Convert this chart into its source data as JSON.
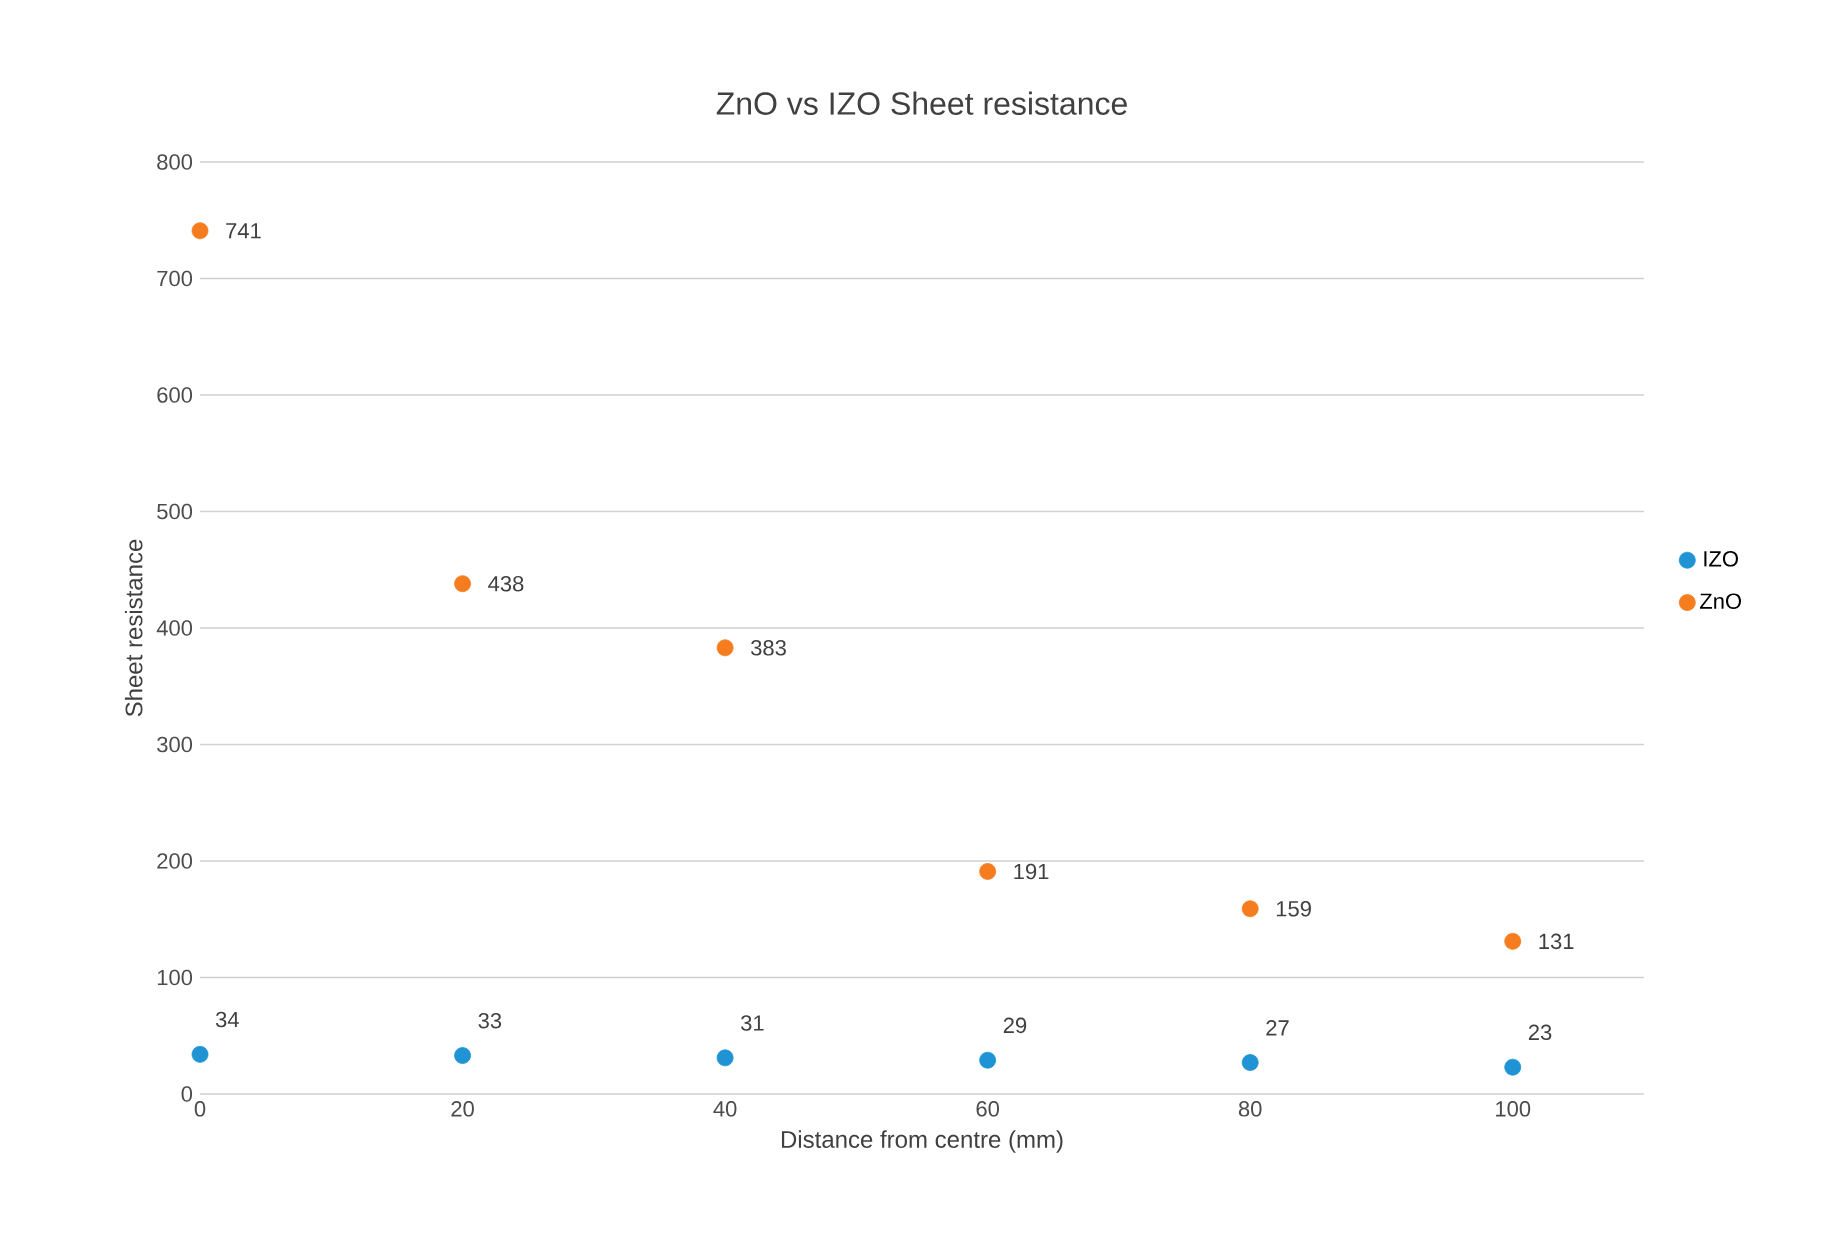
{
  "chart_data": {
    "type": "scatter",
    "title": "ZnO vs IZO Sheet resistance",
    "xlabel": "Distance from centre (mm)",
    "ylabel": "Sheet resistance",
    "x": [
      0,
      20,
      40,
      60,
      80,
      100
    ],
    "series": [
      {
        "name": "IZO",
        "color": "#1f93d4",
        "values": [
          34,
          33,
          31,
          29,
          27,
          23
        ]
      },
      {
        "name": "ZnO",
        "color": "#f57d20",
        "values": [
          741,
          438,
          383,
          191,
          159,
          131
        ]
      }
    ],
    "xlim": [
      0,
      110
    ],
    "ylim": [
      0,
      800
    ],
    "xticks": [
      0,
      20,
      40,
      60,
      80,
      100
    ],
    "yticks": [
      0,
      100,
      200,
      300,
      400,
      500,
      600,
      700,
      800
    ],
    "grid": "y",
    "legend": "right",
    "marker": "circle",
    "data_labels": true
  }
}
